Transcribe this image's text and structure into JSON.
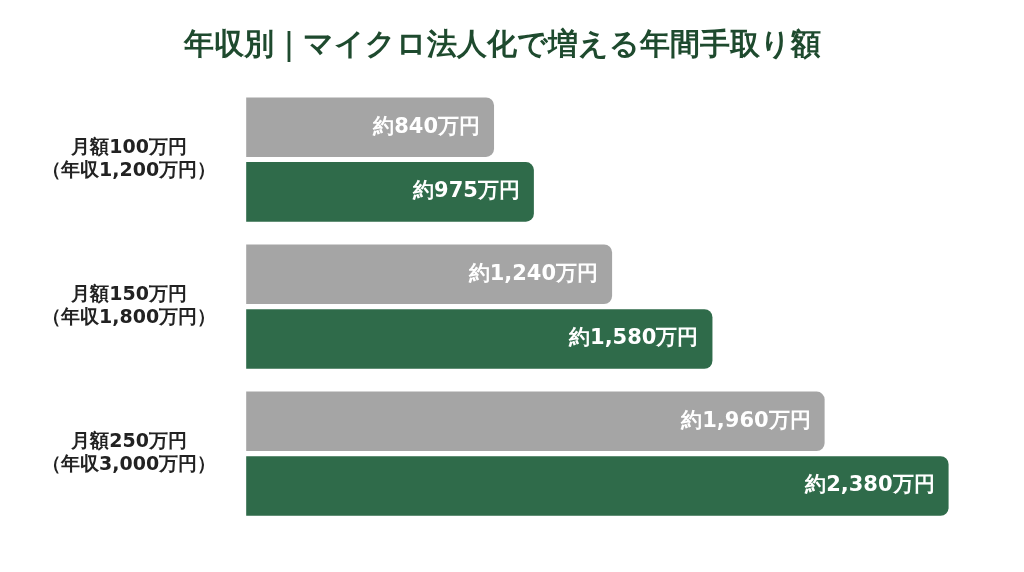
{
  "chart_data": {
    "type": "bar",
    "orientation": "horizontal",
    "title": "年収別｜マイクロ法人化で増える年間手取り額",
    "categories": [
      "月額100万円（年収1,200万円）",
      "月額150万円（年収1,800万円）",
      "月額250万円（年収3,000万円）"
    ],
    "series": [
      {
        "color": "#a5a5a5",
        "values": [
          840,
          1240,
          1960
        ],
        "value_labels": [
          "約840万円",
          "約1,240万円",
          "約1,960万円"
        ]
      },
      {
        "color": "#2f6b4a",
        "values": [
          975,
          1580,
          2380
        ],
        "value_labels": [
          "約975万円",
          "約1,580万円",
          "約2,380万円"
        ]
      }
    ],
    "grid": false,
    "legend": false,
    "tick_labels": "y"
  }
}
